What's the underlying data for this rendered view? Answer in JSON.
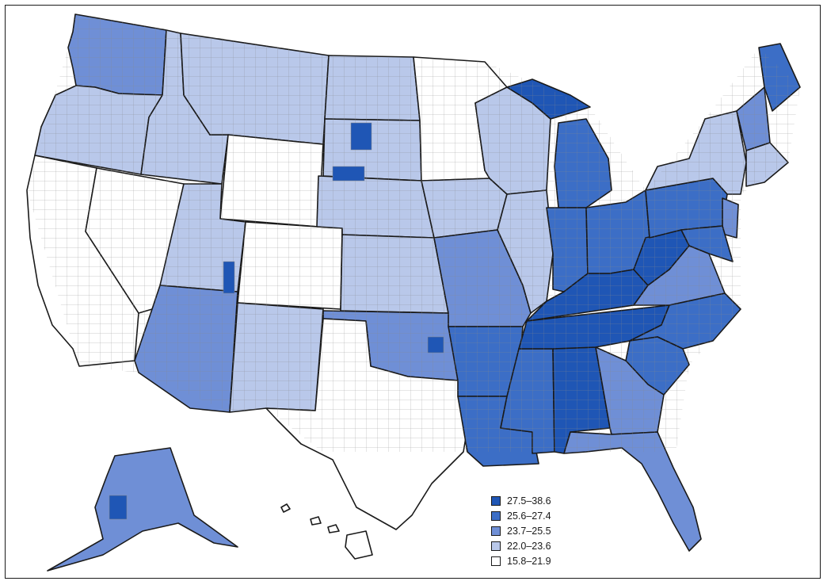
{
  "palette": {
    "c5": "#1f56b5",
    "c4": "#3c6ec6",
    "c3": "#6f8fd6",
    "c2": "#b9c8ea",
    "c1": "#ffffff",
    "outline": "#1a1a1a"
  },
  "legend": {
    "items": [
      {
        "label": "27.5–38.6",
        "color": "#1f56b5"
      },
      {
        "label": "25.6–27.4",
        "color": "#3c6ec6"
      },
      {
        "label": "23.7–25.5",
        "color": "#6f8fd6"
      },
      {
        "label": "22.0–23.6",
        "color": "#b9c8ea"
      },
      {
        "label": "15.8–21.9",
        "color": "#ffffff"
      }
    ]
  }
}
